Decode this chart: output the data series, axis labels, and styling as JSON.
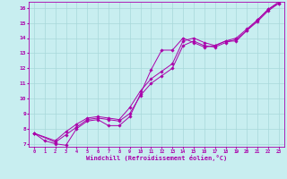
{
  "xlabel": "Windchill (Refroidissement éolien,°C)",
  "background_color": "#c8eef0",
  "grid_color": "#a8d8da",
  "line_color": "#aa00aa",
  "xlim": [
    -0.5,
    23.5
  ],
  "ylim": [
    6.8,
    16.4
  ],
  "xticks": [
    0,
    1,
    2,
    3,
    4,
    5,
    6,
    7,
    8,
    9,
    10,
    11,
    12,
    13,
    14,
    15,
    16,
    17,
    18,
    19,
    20,
    21,
    22,
    23
  ],
  "yticks": [
    7,
    8,
    9,
    10,
    11,
    12,
    13,
    14,
    15,
    16
  ],
  "line1_x": [
    0,
    1,
    2,
    3,
    4,
    5,
    6,
    7,
    8,
    9,
    10,
    11,
    12,
    13,
    14,
    15,
    16,
    17,
    18,
    19,
    20,
    21,
    22,
    23
  ],
  "line1_y": [
    7.7,
    7.2,
    7.0,
    6.9,
    8.0,
    8.5,
    8.6,
    8.2,
    8.2,
    8.8,
    10.3,
    11.9,
    13.2,
    13.2,
    14.0,
    13.7,
    13.4,
    13.5,
    13.8,
    13.8,
    14.5,
    15.2,
    15.9,
    16.3
  ],
  "line2_x": [
    0,
    2,
    3,
    4,
    5,
    6,
    7,
    8,
    9,
    10,
    11,
    12,
    13,
    14,
    15,
    16,
    17,
    18,
    19,
    20,
    21,
    22,
    23
  ],
  "line2_y": [
    7.7,
    7.1,
    7.6,
    8.1,
    8.6,
    8.7,
    8.6,
    8.5,
    9.0,
    10.2,
    11.0,
    11.5,
    12.0,
    13.5,
    13.8,
    13.5,
    13.4,
    13.7,
    13.9,
    14.5,
    15.1,
    15.8,
    16.3
  ],
  "line3_x": [
    0,
    2,
    3,
    4,
    5,
    6,
    7,
    8,
    9,
    10,
    11,
    12,
    13,
    14,
    15,
    16,
    17,
    18,
    19,
    20,
    21,
    22,
    23
  ],
  "line3_y": [
    7.7,
    7.2,
    7.8,
    8.3,
    8.7,
    8.8,
    8.7,
    8.6,
    9.4,
    10.5,
    11.3,
    11.8,
    12.3,
    13.8,
    14.0,
    13.7,
    13.5,
    13.8,
    14.0,
    14.6,
    15.2,
    15.9,
    16.4
  ]
}
